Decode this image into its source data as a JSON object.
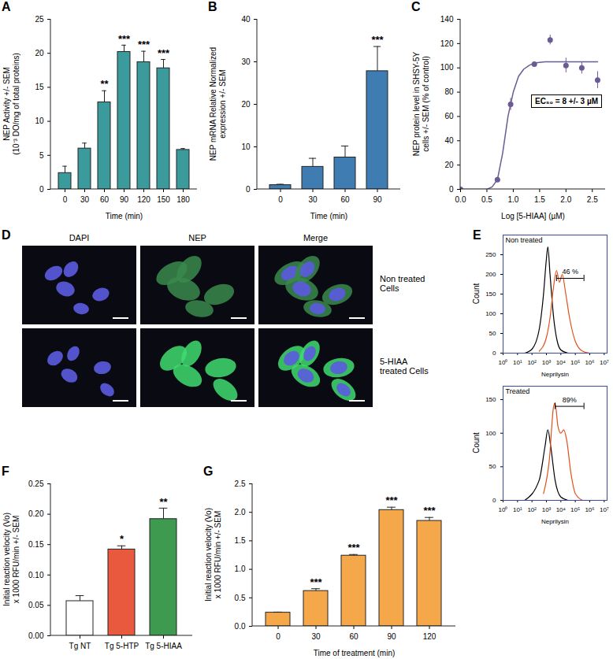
{
  "chart_data": [
    {
      "panel": "A",
      "type": "bar",
      "ylabel": "NEP Activity +/- SEM\n(10⁻³ DO/mg of total proteins)",
      "xlabel": "Time (min)",
      "categories": [
        0,
        30,
        60,
        90,
        120,
        150,
        180
      ],
      "values": [
        2.4,
        6.0,
        12.8,
        20.2,
        18.7,
        17.8,
        5.8
      ],
      "errors": [
        1.0,
        0.8,
        1.7,
        1.0,
        1.6,
        1.3,
        0.2
      ],
      "color": "#3a9a9c",
      "ylim": [
        0,
        25
      ],
      "yticks": [
        0,
        5,
        10,
        15,
        20,
        25
      ],
      "annotations": [
        {
          "category": 60,
          "text": "**"
        },
        {
          "category": 90,
          "text": "***"
        },
        {
          "category": 120,
          "text": "***"
        },
        {
          "category": 150,
          "text": "***"
        }
      ]
    },
    {
      "panel": "B",
      "type": "bar",
      "ylabel": "NEP mRNA Relative Normalized\nexpression +/- SEM",
      "xlabel": "Time (min)",
      "categories": [
        0,
        30,
        60,
        90
      ],
      "values": [
        1.0,
        5.3,
        7.5,
        27.8
      ],
      "errors": [
        0.2,
        2.0,
        2.7,
        5.8
      ],
      "color": "#3e7cb1",
      "ylim": [
        0,
        40
      ],
      "yticks": [
        0,
        10,
        20,
        30,
        40
      ],
      "annotations": [
        {
          "category": 90,
          "text": "***"
        }
      ]
    },
    {
      "panel": "C",
      "type": "scatter",
      "ylabel": "NEP protein level in SHSY-5Y\ncells +/- SEM (% of control)",
      "xlabel": "Log [5-HIAA] (µM)",
      "x": [
        0.0,
        0.7,
        0.95,
        1.4,
        1.7,
        2.0,
        2.3,
        2.6
      ],
      "values": [
        0,
        8,
        70,
        103,
        123,
        102,
        100,
        90
      ],
      "errors": [
        2,
        2,
        5,
        2,
        4,
        6,
        5,
        7
      ],
      "curve": {
        "x": [
          0.0,
          0.5,
          0.6,
          0.7,
          0.8,
          0.9,
          1.0,
          1.1,
          1.2,
          1.3,
          1.4,
          1.6,
          2.0,
          2.6
        ],
        "values": [
          0,
          0,
          2,
          8,
          30,
          60,
          80,
          93,
          99,
          102,
          104,
          105,
          105,
          105
        ]
      },
      "color": "#6b5b95",
      "marker": "circle",
      "xlim": [
        0,
        2.75
      ],
      "xticks": [
        {
          "value": 0,
          "label": "0.0"
        },
        {
          "value": 0.5,
          "label": "0.5"
        },
        {
          "value": 1,
          "label": "1.0"
        },
        {
          "value": 1.5,
          "label": "1.5"
        },
        {
          "value": 2,
          "label": "2.0"
        },
        {
          "value": 2.5,
          "label": "2.5"
        }
      ],
      "ylim": [
        0,
        140
      ],
      "yticks": [
        0,
        20,
        40,
        60,
        80,
        100,
        120,
        140
      ],
      "annotation": "EC₅₀ = 8 +/- 3 µM"
    },
    {
      "panel": "D",
      "type": "image_grid",
      "columns": [
        "DAPI",
        "NEP",
        "Merge"
      ],
      "rows": [
        "Non treated\nCells",
        "5-HIAA\ntreated Cells"
      ]
    },
    {
      "panel": "E",
      "type": "line",
      "title": "Non treated",
      "ylabel": "Count",
      "xlabel": "Neprilysin",
      "series": [
        {
          "color": "#000000",
          "x": [
            1.5,
            2.0,
            2.5,
            2.8,
            3.0,
            3.1,
            3.25,
            3.5,
            3.75,
            4.0,
            4.5
          ],
          "values": [
            0,
            10,
            60,
            150,
            240,
            270,
            200,
            90,
            30,
            8,
            0
          ]
        },
        {
          "color": "#e0521b",
          "x": [
            2.5,
            3.0,
            3.25,
            3.5,
            3.7,
            3.9,
            4.1,
            4.3,
            4.6,
            5.0,
            5.5,
            6.0
          ],
          "values": [
            5,
            40,
            90,
            170,
            210,
            180,
            200,
            160,
            90,
            30,
            5,
            0
          ]
        }
      ],
      "gate": {
        "x": [
          3.7,
          5.6
        ],
        "y": 190,
        "label": "46 %"
      },
      "xlim": [
        0,
        7.2
      ],
      "xticks": [
        {
          "value": 0,
          "label": "10⁰"
        },
        {
          "value": 1,
          "label": "10¹"
        },
        {
          "value": 2,
          "label": "10²"
        },
        {
          "value": 3,
          "label": "10³"
        },
        {
          "value": 4,
          "label": "10⁴"
        },
        {
          "value": 5,
          "label": "10⁵"
        },
        {
          "value": 6,
          "label": "10⁶"
        },
        {
          "value": 7,
          "label": "10⁷"
        }
      ],
      "ylim": [
        0,
        300
      ],
      "yticks": [
        0,
        50,
        100,
        150,
        200,
        250
      ]
    },
    {
      "type": "line",
      "title": "Treated",
      "ylabel": "Count",
      "xlabel": "Neprilysin",
      "series": [
        {
          "color": "#000000",
          "x": [
            1.5,
            2.5,
            2.9,
            3.1,
            3.3,
            3.6,
            4.0,
            4.5
          ],
          "values": [
            0,
            30,
            80,
            105,
            80,
            30,
            5,
            0
          ]
        },
        {
          "color": "#e0521b",
          "x": [
            2.8,
            3.2,
            3.5,
            3.6,
            3.8,
            4.0,
            4.2,
            4.4,
            4.7,
            5.0,
            5.5
          ],
          "values": [
            10,
            60,
            140,
            145,
            110,
            100,
            105,
            90,
            40,
            10,
            0
          ]
        }
      ],
      "gate": {
        "x": [
          3.6,
          5.6
        ],
        "y": 140,
        "label": "89%"
      },
      "xlim": [
        0,
        7.2
      ],
      "xticks": [
        {
          "value": 0,
          "label": "10⁰"
        },
        {
          "value": 1,
          "label": "10¹"
        },
        {
          "value": 2,
          "label": "10²"
        },
        {
          "value": 3,
          "label": "10³"
        },
        {
          "value": 4,
          "label": "10⁴"
        },
        {
          "value": 5,
          "label": "10⁵"
        },
        {
          "value": 6,
          "label": "10⁶"
        },
        {
          "value": 7,
          "label": "10⁷"
        }
      ],
      "ylim": [
        0,
        170
      ],
      "yticks": [
        0,
        50,
        100,
        150
      ]
    },
    {
      "panel": "F",
      "type": "bar",
      "ylabel": "Initial reaction velocity (Vo)\nx 1000 RFU/min +/- SEM",
      "categories": [
        "Tg NT",
        "Tg 5-HTP",
        "Tg 5-HIAA"
      ],
      "values": [
        0.057,
        0.142,
        0.192
      ],
      "errors": [
        0.009,
        0.006,
        0.018
      ],
      "colors": [
        "#ffffff",
        "#e8593d",
        "#3d9a4f"
      ],
      "ylim": [
        0,
        0.25
      ],
      "yticks": [
        {
          "value": 0,
          "label": "0.00"
        },
        {
          "value": 0.05,
          "label": "0.05"
        },
        {
          "value": 0.1,
          "label": "0.10"
        },
        {
          "value": 0.15,
          "label": "0.15"
        },
        {
          "value": 0.2,
          "label": "0.20"
        },
        {
          "value": 0.25,
          "label": "0.25"
        }
      ],
      "annotations": [
        {
          "category": "Tg 5-HTP",
          "text": "*"
        },
        {
          "category": "Tg 5-HIAA",
          "text": "**"
        }
      ]
    },
    {
      "panel": "G",
      "type": "bar",
      "ylabel": "Initial reaction velocity (Vo)\nx 1000 RFU/min +/- SEM",
      "xlabel": "Time of treatment (min)",
      "categories": [
        0,
        30,
        60,
        90,
        120
      ],
      "values": [
        0.24,
        0.62,
        1.24,
        2.04,
        1.85
      ],
      "errors": [
        0.01,
        0.04,
        0.02,
        0.05,
        0.06
      ],
      "color": "#f5a84a",
      "ylim": [
        0,
        2.5
      ],
      "yticks": [
        {
          "value": 0,
          "label": "0.0"
        },
        {
          "value": 0.5,
          "label": "0.5"
        },
        {
          "value": 1,
          "label": "1.0"
        },
        {
          "value": 1.5,
          "label": "1.5"
        },
        {
          "value": 2,
          "label": "2.0"
        },
        {
          "value": 2.5,
          "label": "2.5"
        }
      ],
      "annotations": [
        {
          "category": 30,
          "text": "***"
        },
        {
          "category": 60,
          "text": "***"
        },
        {
          "category": 90,
          "text": "***"
        },
        {
          "category": 120,
          "text": "***"
        }
      ]
    }
  ]
}
